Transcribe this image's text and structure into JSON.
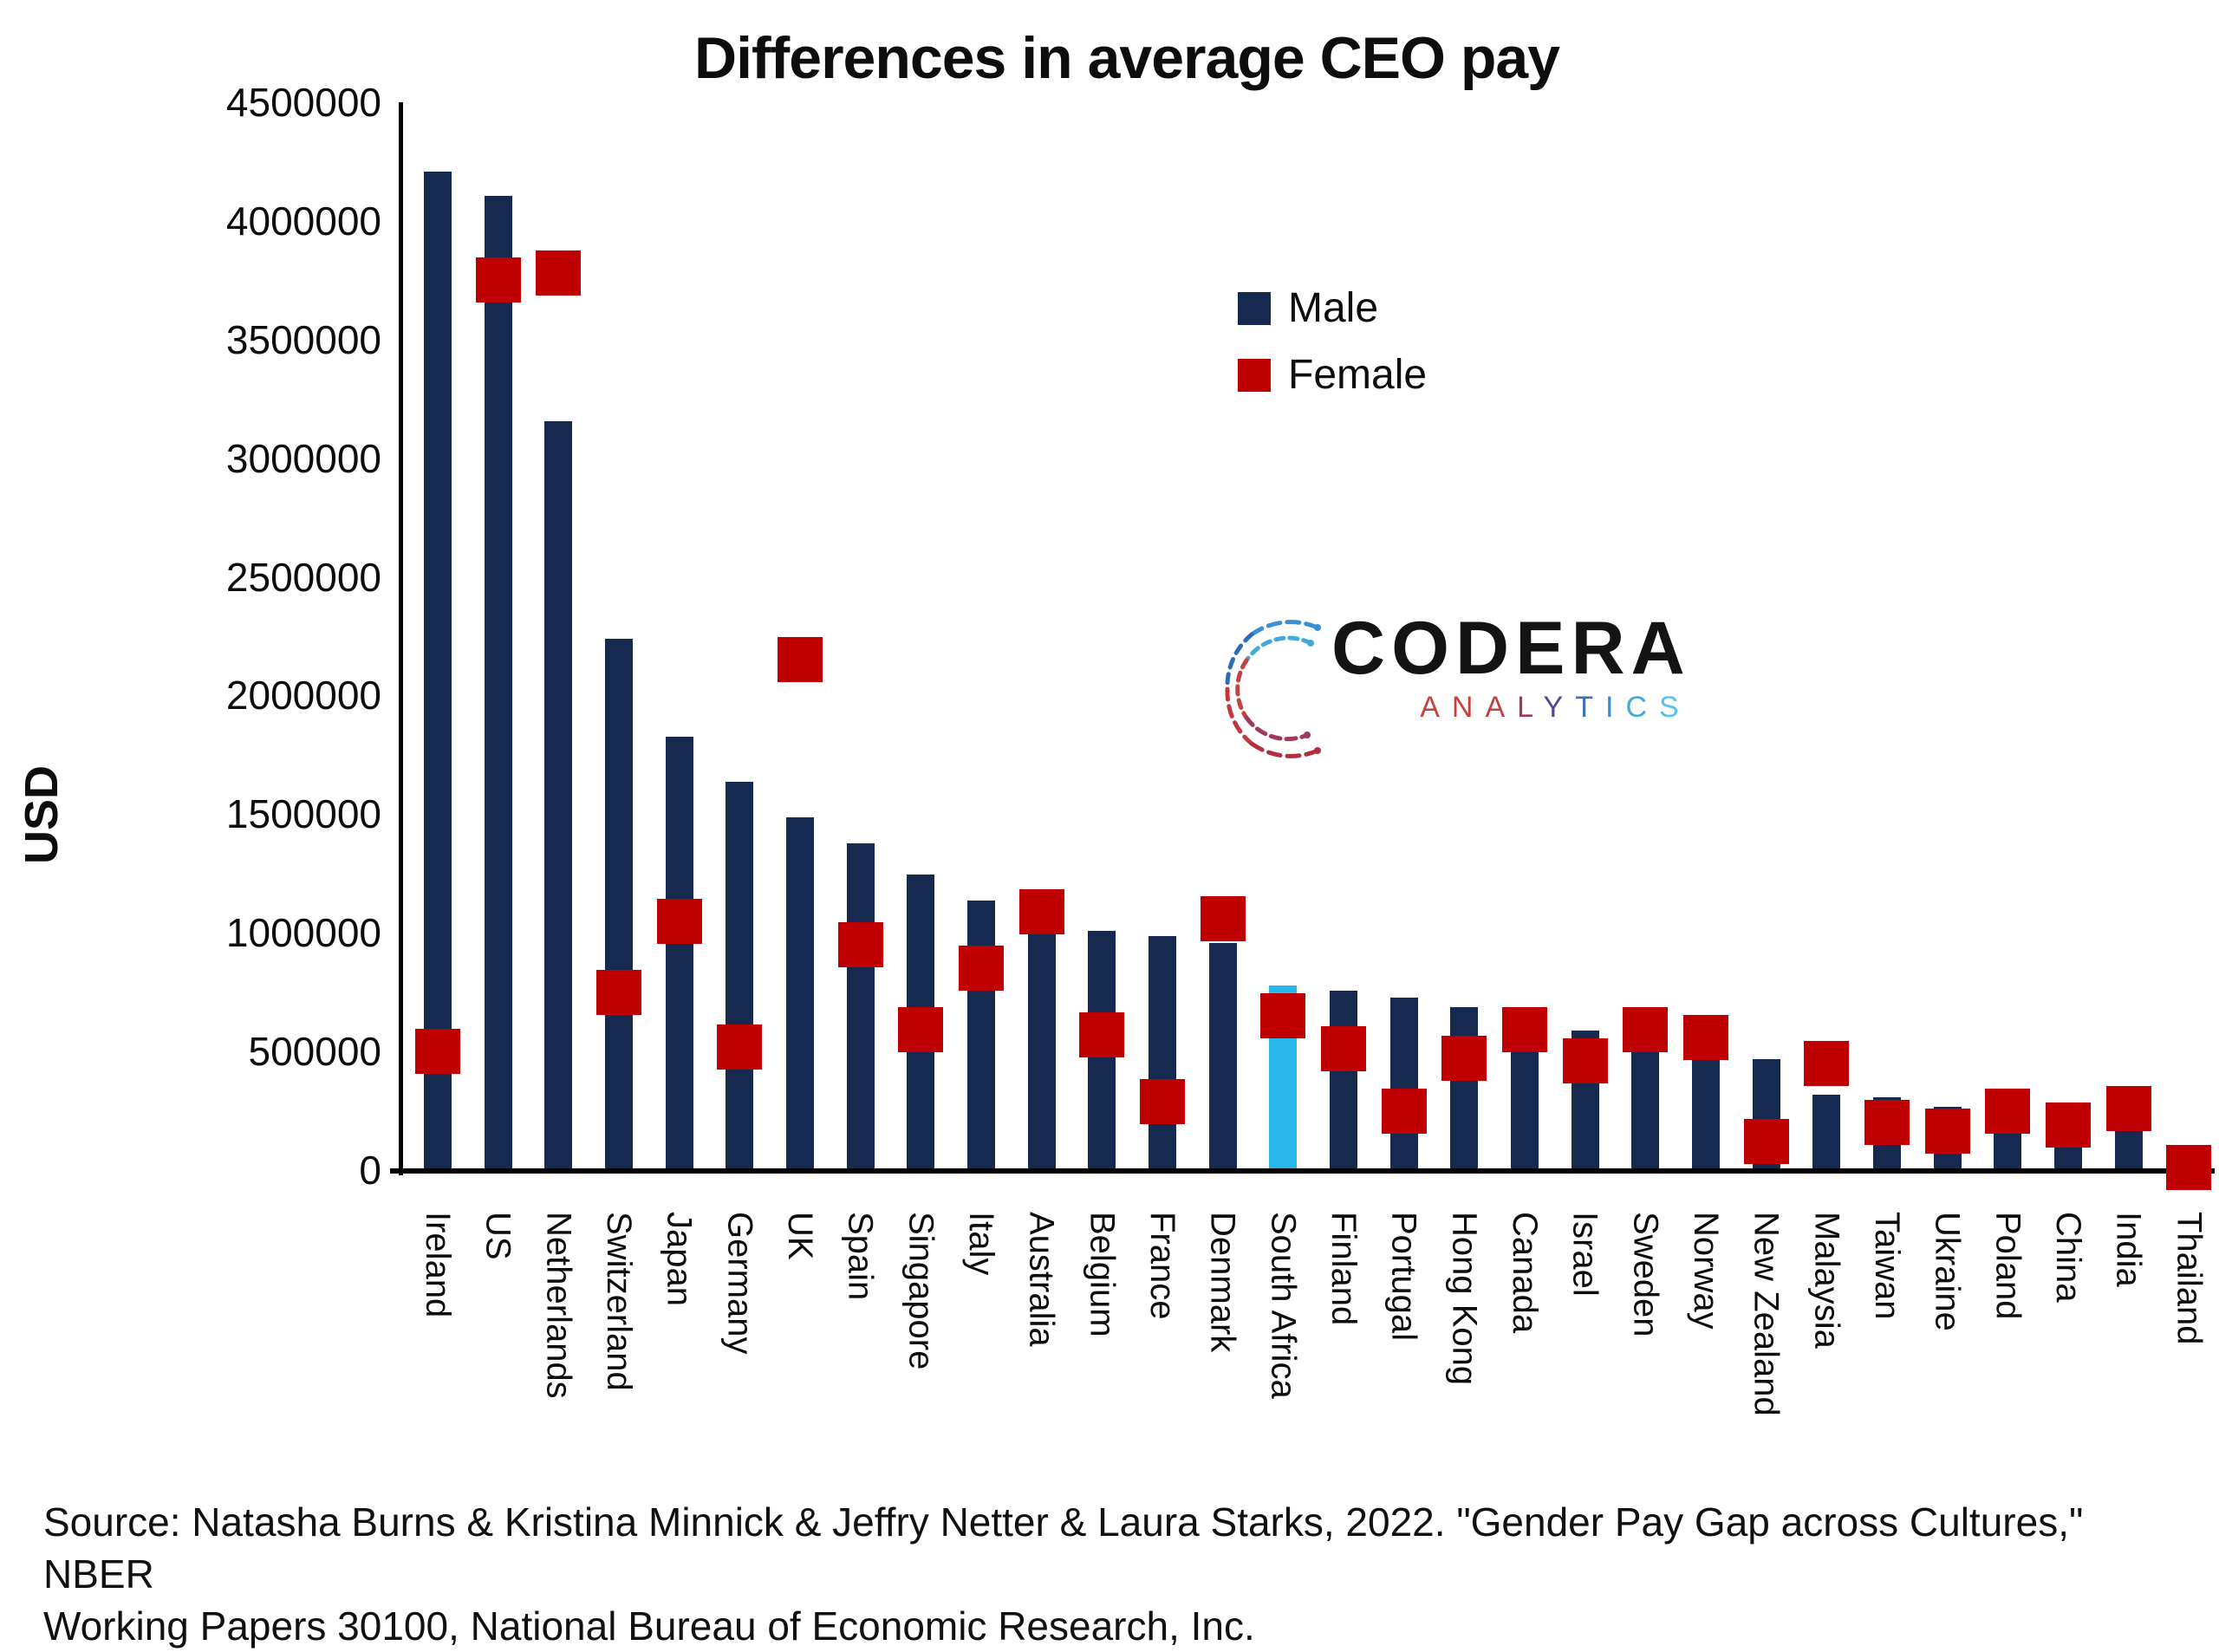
{
  "title": "Differences in average CEO pay",
  "y_axis": {
    "label": "USD"
  },
  "legend": {
    "male_label": "Male",
    "female_label": "Female"
  },
  "colors": {
    "male": "#16294F",
    "female": "#C00000",
    "highlight": "#29B5EA",
    "axis": "#000000"
  },
  "logo": {
    "name": "CODERA",
    "sub_letters": [
      {
        "ch": "A",
        "color": "#C9413F"
      },
      {
        "ch": "N",
        "color": "#C9413F"
      },
      {
        "ch": "A",
        "color": "#C04040"
      },
      {
        "ch": "L",
        "color": "#A03A55"
      },
      {
        "ch": "Y",
        "color": "#4A4A8C"
      },
      {
        "ch": "T",
        "color": "#3F6FB5"
      },
      {
        "ch": "I",
        "color": "#3A8FD0"
      },
      {
        "ch": "C",
        "color": "#45A8DD"
      },
      {
        "ch": "S",
        "color": "#5BC0EA"
      }
    ]
  },
  "source": {
    "line1": "Source: Natasha Burns & Kristina Minnick & Jeffry Netter & Laura Starks, 2022. \"Gender Pay Gap across Cultures,\" NBER",
    "line2": "Working Papers 30100, National Bureau of Economic Research, Inc."
  },
  "chart_data": {
    "type": "bar",
    "title": "Differences in average CEO pay",
    "xlabel": "",
    "ylabel": "USD",
    "ylim": [
      0,
      4500000
    ],
    "ytick_values": [
      4500000,
      4000000,
      3500000,
      3000000,
      2500000,
      2000000,
      1500000,
      1000000,
      500000,
      0
    ],
    "grid": false,
    "legend_position": "center-right",
    "highlight_category": "South Africa",
    "categories": [
      "Ireland",
      "US",
      "Netherlands",
      "Switzerland",
      "Japan",
      "Germany",
      "UK",
      "Spain",
      "Singapore",
      "Italy",
      "Australia",
      "Belgium",
      "France",
      "Denmark",
      "South Africa",
      "Finland",
      "Portugal",
      "Hong Kong",
      "Canada",
      "Israel",
      "Sweden",
      "Norway",
      "New Zealand",
      "Malaysia",
      "Taiwan",
      "Ukraine",
      "Poland",
      "China",
      "India",
      "Thailand"
    ],
    "series": [
      {
        "name": "Male",
        "render": "bar",
        "values": [
          4200000,
          4100000,
          3150000,
          2230000,
          1820000,
          1630000,
          1480000,
          1370000,
          1240000,
          1130000,
          1050000,
          1000000,
          980000,
          950000,
          770000,
          750000,
          720000,
          680000,
          610000,
          580000,
          560000,
          530000,
          460000,
          310000,
          300000,
          260000,
          180000,
          120000,
          190000,
          40000
        ]
      },
      {
        "name": "Female",
        "render": "square-marker",
        "values": [
          500000,
          3750000,
          3780000,
          750000,
          1050000,
          520000,
          2150000,
          950000,
          590000,
          850000,
          1090000,
          570000,
          290000,
          1060000,
          650000,
          510000,
          250000,
          470000,
          590000,
          460000,
          590000,
          560000,
          120000,
          450000,
          200000,
          165000,
          250000,
          190000,
          260000,
          10000
        ]
      }
    ]
  }
}
